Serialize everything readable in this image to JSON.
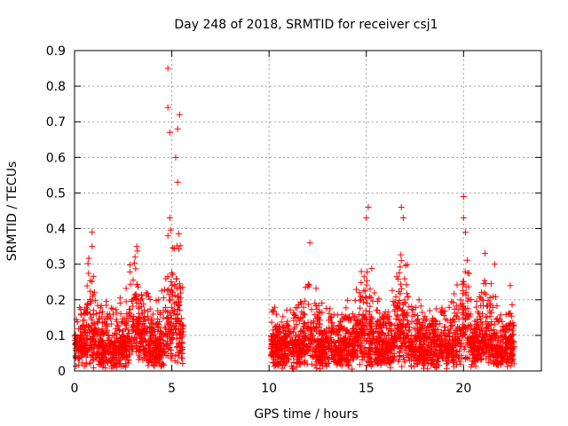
{
  "chart_data": {
    "type": "scatter",
    "title": "Day 248 of 2018, SRMTID for receiver csj1",
    "xlabel": "GPS time / hours",
    "ylabel": "SRMTID / TECUs",
    "xlim": [
      0,
      24
    ],
    "ylim": [
      0,
      0.9
    ],
    "xticks": [
      0,
      5,
      10,
      15,
      20
    ],
    "xtick_labels": [
      "0",
      "5",
      "10",
      "15",
      "20"
    ],
    "yticks": [
      0,
      0.1,
      0.2,
      0.3,
      0.4,
      0.5,
      0.6,
      0.7,
      0.8,
      0.9
    ],
    "ytick_labels": [
      "0",
      "0.1",
      "0.2",
      "0.3",
      "0.4",
      "0.5",
      "0.6",
      "0.7",
      "0.8",
      "0.9"
    ],
    "grid": true,
    "marker": "+",
    "color": "#ff0000",
    "series": [
      {
        "name": "SRMTID",
        "segments": [
          [
            0.0,
            5.6
          ],
          [
            10.1,
            22.6
          ]
        ],
        "highlights": [
          {
            "x": 4.8,
            "y": 0.85
          },
          {
            "x": 4.8,
            "y": 0.74
          },
          {
            "x": 4.9,
            "y": 0.67
          },
          {
            "x": 5.4,
            "y": 0.72
          },
          {
            "x": 5.3,
            "y": 0.68
          },
          {
            "x": 5.2,
            "y": 0.6
          },
          {
            "x": 5.3,
            "y": 0.53
          },
          {
            "x": 4.9,
            "y": 0.43
          },
          {
            "x": 4.8,
            "y": 0.38
          },
          {
            "x": 0.9,
            "y": 0.39
          },
          {
            "x": 0.9,
            "y": 0.35
          },
          {
            "x": 3.2,
            "y": 0.35
          },
          {
            "x": 12.1,
            "y": 0.36
          },
          {
            "x": 15.1,
            "y": 0.46
          },
          {
            "x": 15.0,
            "y": 0.43
          },
          {
            "x": 16.8,
            "y": 0.46
          },
          {
            "x": 16.9,
            "y": 0.43
          },
          {
            "x": 20.0,
            "y": 0.49
          },
          {
            "x": 20.0,
            "y": 0.43
          },
          {
            "x": 20.1,
            "y": 0.39
          },
          {
            "x": 21.1,
            "y": 0.33
          },
          {
            "x": 21.6,
            "y": 0.3
          },
          {
            "x": 22.4,
            "y": 0.24
          },
          {
            "x": 16.8,
            "y": 0.31
          }
        ]
      }
    ]
  }
}
